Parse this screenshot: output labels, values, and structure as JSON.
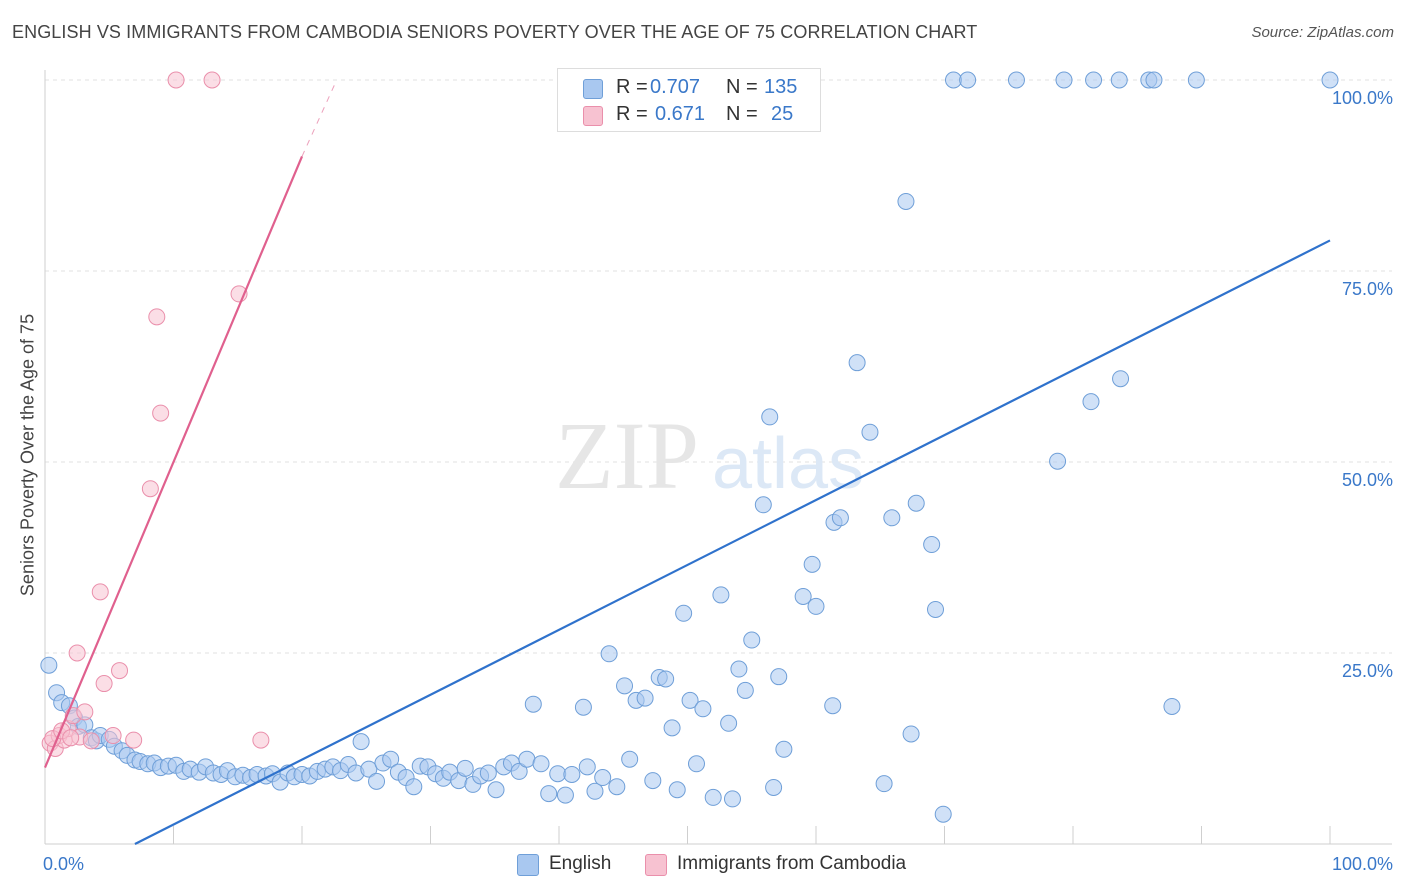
{
  "title": "ENGLISH VS IMMIGRANTS FROM CAMBODIA SENIORS POVERTY OVER THE AGE OF 75 CORRELATION CHART",
  "source": "Source: ZipAtlas.com",
  "watermark": {
    "zip": "ZIP",
    "atlas": "atlas"
  },
  "legend": {
    "rows": [
      {
        "r_label": "R =",
        "r_value": "0.707",
        "n_label": "N =",
        "n_value": "135"
      },
      {
        "r_label": "R =",
        "r_value": "0.671",
        "n_label": "N =",
        "n_value": "25"
      }
    ]
  },
  "bottom_legend": {
    "english": "English",
    "cambodia": "Immigrants from Cambodia"
  },
  "colors": {
    "english_fill": "#a9c8f0",
    "english_stroke": "#6f9fd8",
    "english_line": "#2f72cc",
    "cambodia_fill": "#f7c2d1",
    "cambodia_stroke": "#ea8fab",
    "cambodia_line": "#e0608e",
    "axis_label": "#3a78c9"
  },
  "chart_data": {
    "type": "scatter",
    "title": "ENGLISH VS IMMIGRANTS FROM CAMBODIA SENIORS POVERTY OVER THE AGE OF 75 CORRELATION CHART",
    "xlabel": "",
    "ylabel": "Seniors Poverty Over the Age of 75",
    "xlim": [
      0,
      100
    ],
    "ylim": [
      0,
      100
    ],
    "x_tick_labels": [
      "0.0%",
      "100.0%"
    ],
    "y_tick_labels": [
      "25.0%",
      "50.0%",
      "75.0%",
      "100.0%"
    ],
    "y_ticks": [
      25,
      50,
      75,
      100
    ],
    "grid": true,
    "series": [
      {
        "name": "English",
        "r": 0.707,
        "n": 135,
        "trend": {
          "x": [
            7,
            100
          ],
          "y": [
            0,
            79
          ]
        },
        "points": [
          [
            0.3,
            23.4
          ],
          [
            0.9,
            19.8
          ],
          [
            1.3,
            18.5
          ],
          [
            1.9,
            18.1
          ],
          [
            2.3,
            16.5
          ],
          [
            2.6,
            15.4
          ],
          [
            3.1,
            15.6
          ],
          [
            3.6,
            13.9
          ],
          [
            4.0,
            13.5
          ],
          [
            4.3,
            14.2
          ],
          [
            5.0,
            13.7
          ],
          [
            5.4,
            12.8
          ],
          [
            6.0,
            12.2
          ],
          [
            6.4,
            11.6
          ],
          [
            7.0,
            11.0
          ],
          [
            7.4,
            10.8
          ],
          [
            8.0,
            10.5
          ],
          [
            8.5,
            10.6
          ],
          [
            9.0,
            10.0
          ],
          [
            9.6,
            10.2
          ],
          [
            10.2,
            10.3
          ],
          [
            10.8,
            9.5
          ],
          [
            11.3,
            9.8
          ],
          [
            12.0,
            9.4
          ],
          [
            12.5,
            10.1
          ],
          [
            13.1,
            9.3
          ],
          [
            13.7,
            9.1
          ],
          [
            14.2,
            9.6
          ],
          [
            14.8,
            8.8
          ],
          [
            15.4,
            9.0
          ],
          [
            16.0,
            8.7
          ],
          [
            16.5,
            9.1
          ],
          [
            17.2,
            8.9
          ],
          [
            17.7,
            9.2
          ],
          [
            18.3,
            8.1
          ],
          [
            18.9,
            9.3
          ],
          [
            19.4,
            8.8
          ],
          [
            20.0,
            9.1
          ],
          [
            20.6,
            8.9
          ],
          [
            21.2,
            9.5
          ],
          [
            21.8,
            9.8
          ],
          [
            22.4,
            10.1
          ],
          [
            23.0,
            9.6
          ],
          [
            23.6,
            10.4
          ],
          [
            24.2,
            9.3
          ],
          [
            24.6,
            13.4
          ],
          [
            25.2,
            9.8
          ],
          [
            25.8,
            8.2
          ],
          [
            26.3,
            10.6
          ],
          [
            26.9,
            11.1
          ],
          [
            27.5,
            9.4
          ],
          [
            28.1,
            8.7
          ],
          [
            28.7,
            7.5
          ],
          [
            29.2,
            10.2
          ],
          [
            29.8,
            10.1
          ],
          [
            30.4,
            9.2
          ],
          [
            31.0,
            8.6
          ],
          [
            31.5,
            9.4
          ],
          [
            32.2,
            8.3
          ],
          [
            32.7,
            9.9
          ],
          [
            33.3,
            7.8
          ],
          [
            33.9,
            8.9
          ],
          [
            34.5,
            9.3
          ],
          [
            35.1,
            7.1
          ],
          [
            35.7,
            10.1
          ],
          [
            36.3,
            10.6
          ],
          [
            36.9,
            9.5
          ],
          [
            37.5,
            11.1
          ],
          [
            38.0,
            18.3
          ],
          [
            38.6,
            10.5
          ],
          [
            39.2,
            6.6
          ],
          [
            39.9,
            9.2
          ],
          [
            40.5,
            6.4
          ],
          [
            41.0,
            9.1
          ],
          [
            41.9,
            17.9
          ],
          [
            42.2,
            10.1
          ],
          [
            42.8,
            6.9
          ],
          [
            43.4,
            8.7
          ],
          [
            43.9,
            24.9
          ],
          [
            44.5,
            7.5
          ],
          [
            45.1,
            20.7
          ],
          [
            45.5,
            11.1
          ],
          [
            46.0,
            18.8
          ],
          [
            46.7,
            19.1
          ],
          [
            47.3,
            8.3
          ],
          [
            47.8,
            21.8
          ],
          [
            48.3,
            21.6
          ],
          [
            48.8,
            15.2
          ],
          [
            49.2,
            7.1
          ],
          [
            49.7,
            30.2
          ],
          [
            50.2,
            18.8
          ],
          [
            50.7,
            10.5
          ],
          [
            51.2,
            17.7
          ],
          [
            52.0,
            6.1
          ],
          [
            52.6,
            32.6
          ],
          [
            53.2,
            15.8
          ],
          [
            54.0,
            22.9
          ],
          [
            54.5,
            20.1
          ],
          [
            55.0,
            26.7
          ],
          [
            55.9,
            44.4
          ],
          [
            56.4,
            55.9
          ],
          [
            56.7,
            7.4
          ],
          [
            57.5,
            12.4
          ],
          [
            57.1,
            21.9
          ],
          [
            53.5,
            5.9
          ],
          [
            59.0,
            32.4
          ],
          [
            59.7,
            36.6
          ],
          [
            60.0,
            31.1
          ],
          [
            61.3,
            18.1
          ],
          [
            61.4,
            42.1
          ],
          [
            61.9,
            42.7
          ],
          [
            63.2,
            63.0
          ],
          [
            64.2,
            53.9
          ],
          [
            65.3,
            7.9
          ],
          [
            65.9,
            42.7
          ],
          [
            67.0,
            84.1
          ],
          [
            67.4,
            14.4
          ],
          [
            67.8,
            44.6
          ],
          [
            69.0,
            39.2
          ],
          [
            69.3,
            30.7
          ],
          [
            69.9,
            3.9
          ],
          [
            70.7,
            100
          ],
          [
            71.8,
            100
          ],
          [
            75.6,
            100
          ],
          [
            78.8,
            50.1
          ],
          [
            79.3,
            100
          ],
          [
            81.4,
            57.9
          ],
          [
            81.6,
            100
          ],
          [
            83.7,
            60.9
          ],
          [
            83.6,
            100
          ],
          [
            85.9,
            100
          ],
          [
            86.3,
            100
          ],
          [
            87.7,
            18.0
          ],
          [
            89.6,
            100
          ],
          [
            100.0,
            100
          ]
        ]
      },
      {
        "name": "Immigrants from Cambodia",
        "r": 0.671,
        "n": 25,
        "trend": {
          "x": [
            0,
            20
          ],
          "y": [
            10,
            90
          ]
        },
        "trend_dashed": {
          "x": [
            20,
            22.7
          ],
          "y": [
            90,
            100
          ]
        },
        "points": [
          [
            0.4,
            13.2
          ],
          [
            0.8,
            12.5
          ],
          [
            1.1,
            14.2
          ],
          [
            1.5,
            13.6
          ],
          [
            1.8,
            15.1
          ],
          [
            2.2,
            16.8
          ],
          [
            2.7,
            14.0
          ],
          [
            2.5,
            25.0
          ],
          [
            3.1,
            17.3
          ],
          [
            3.6,
            13.5
          ],
          [
            4.3,
            33.0
          ],
          [
            4.6,
            21.0
          ],
          [
            5.3,
            14.2
          ],
          [
            5.8,
            22.7
          ],
          [
            6.9,
            13.6
          ],
          [
            8.2,
            46.5
          ],
          [
            8.7,
            69.0
          ],
          [
            9.0,
            56.4
          ],
          [
            10.2,
            100
          ],
          [
            13.0,
            100
          ],
          [
            15.1,
            72.0
          ],
          [
            16.8,
            13.6
          ],
          [
            0.6,
            13.8
          ],
          [
            1.3,
            14.8
          ],
          [
            2.0,
            13.9
          ]
        ]
      }
    ]
  }
}
